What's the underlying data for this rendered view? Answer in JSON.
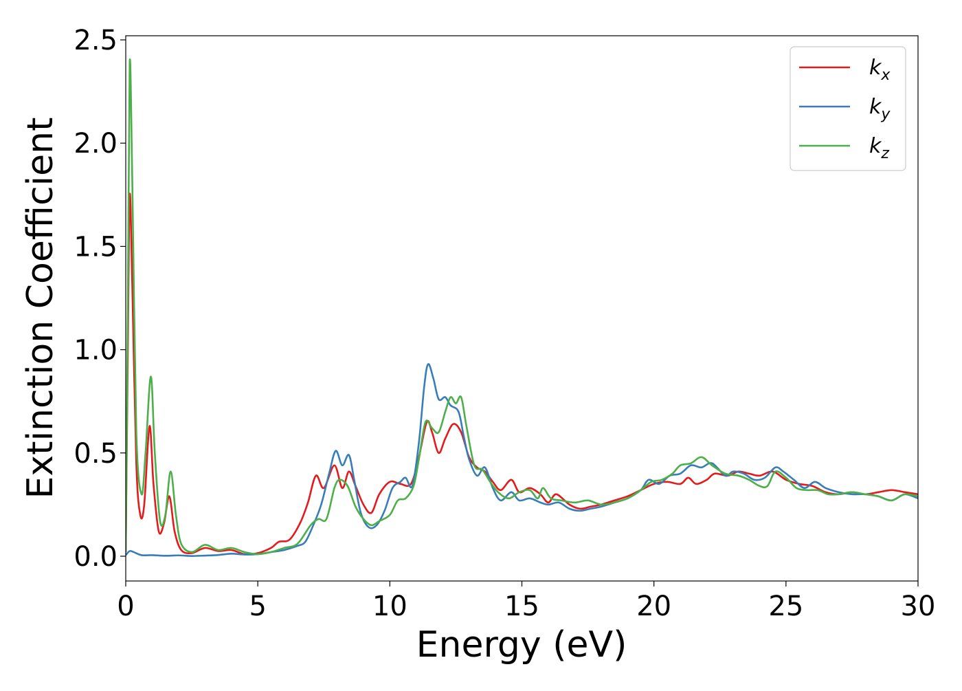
{
  "chart_data": {
    "type": "line",
    "title": "",
    "xlabel": "Energy (eV)",
    "ylabel": "Extinction Coefficient",
    "xlim": [
      0,
      30
    ],
    "ylim": [
      -0.12,
      2.52
    ],
    "xticks": [
      0,
      5,
      10,
      15,
      20,
      25,
      30
    ],
    "xtick_labels": [
      "0",
      "5",
      "10",
      "15",
      "20",
      "25",
      "30"
    ],
    "yticks": [
      0.0,
      0.5,
      1.0,
      1.5,
      2.0,
      2.5
    ],
    "ytick_labels": [
      "0.0",
      "0.5",
      "1.0",
      "1.5",
      "2.0",
      "2.5"
    ],
    "grid": false,
    "legend_position": "top-right",
    "series": [
      {
        "name": "k_x",
        "legend_base": "k",
        "legend_sub": "x",
        "color": "#e41a1c",
        "points": [
          [
            0,
            0.02
          ],
          [
            0.08,
            1.0
          ],
          [
            0.15,
            1.75
          ],
          [
            0.25,
            1.3
          ],
          [
            0.4,
            0.45
          ],
          [
            0.55,
            0.2
          ],
          [
            0.7,
            0.25
          ],
          [
            0.9,
            0.63
          ],
          [
            1.05,
            0.35
          ],
          [
            1.25,
            0.12
          ],
          [
            1.45,
            0.16
          ],
          [
            1.65,
            0.29
          ],
          [
            1.85,
            0.12
          ],
          [
            2.1,
            0.03
          ],
          [
            2.5,
            0.015
          ],
          [
            3.0,
            0.04
          ],
          [
            3.5,
            0.025
          ],
          [
            4.0,
            0.03
          ],
          [
            4.5,
            0.01
          ],
          [
            5.0,
            0.015
          ],
          [
            5.5,
            0.04
          ],
          [
            5.8,
            0.07
          ],
          [
            6.2,
            0.08
          ],
          [
            6.6,
            0.16
          ],
          [
            6.9,
            0.26
          ],
          [
            7.2,
            0.39
          ],
          [
            7.5,
            0.33
          ],
          [
            7.9,
            0.44
          ],
          [
            8.2,
            0.33
          ],
          [
            8.45,
            0.41
          ],
          [
            8.7,
            0.34
          ],
          [
            9.0,
            0.25
          ],
          [
            9.3,
            0.21
          ],
          [
            9.6,
            0.3
          ],
          [
            10.0,
            0.36
          ],
          [
            10.4,
            0.35
          ],
          [
            10.8,
            0.35
          ],
          [
            11.1,
            0.48
          ],
          [
            11.4,
            0.65
          ],
          [
            11.6,
            0.6
          ],
          [
            11.85,
            0.5
          ],
          [
            12.1,
            0.57
          ],
          [
            12.4,
            0.64
          ],
          [
            12.7,
            0.6
          ],
          [
            13.0,
            0.48
          ],
          [
            13.3,
            0.43
          ],
          [
            13.6,
            0.41
          ],
          [
            13.9,
            0.36
          ],
          [
            14.2,
            0.32
          ],
          [
            14.6,
            0.37
          ],
          [
            14.9,
            0.31
          ],
          [
            15.3,
            0.33
          ],
          [
            15.7,
            0.3
          ],
          [
            16.0,
            0.26
          ],
          [
            16.3,
            0.3
          ],
          [
            16.8,
            0.25
          ],
          [
            17.2,
            0.23
          ],
          [
            17.6,
            0.24
          ],
          [
            18.0,
            0.25
          ],
          [
            18.5,
            0.27
          ],
          [
            19.0,
            0.29
          ],
          [
            19.5,
            0.32
          ],
          [
            20.0,
            0.35
          ],
          [
            20.5,
            0.36
          ],
          [
            21.0,
            0.35
          ],
          [
            21.3,
            0.38
          ],
          [
            21.6,
            0.35
          ],
          [
            22.0,
            0.37
          ],
          [
            22.3,
            0.4
          ],
          [
            22.8,
            0.39
          ],
          [
            23.2,
            0.41
          ],
          [
            23.6,
            0.4
          ],
          [
            24.0,
            0.39
          ],
          [
            24.5,
            0.41
          ],
          [
            25.0,
            0.37
          ],
          [
            25.5,
            0.35
          ],
          [
            26.0,
            0.34
          ],
          [
            26.5,
            0.31
          ],
          [
            27.0,
            0.3
          ],
          [
            27.5,
            0.31
          ],
          [
            28.0,
            0.3
          ],
          [
            28.5,
            0.31
          ],
          [
            29.0,
            0.32
          ],
          [
            29.5,
            0.31
          ],
          [
            30.0,
            0.3
          ]
        ]
      },
      {
        "name": "k_y",
        "legend_base": "k",
        "legend_sub": "y",
        "color": "#377eb8",
        "points": [
          [
            0,
            0.005
          ],
          [
            0.15,
            0.025
          ],
          [
            0.3,
            0.02
          ],
          [
            0.6,
            0.005
          ],
          [
            1.0,
            0.005
          ],
          [
            1.5,
            0.002
          ],
          [
            2.0,
            0.004
          ],
          [
            2.5,
            0.001
          ],
          [
            3.0,
            0.003
          ],
          [
            3.5,
            0.006
          ],
          [
            4.0,
            0.012
          ],
          [
            4.5,
            0.008
          ],
          [
            5.0,
            0.01
          ],
          [
            5.5,
            0.02
          ],
          [
            6.0,
            0.03
          ],
          [
            6.5,
            0.05
          ],
          [
            6.8,
            0.07
          ],
          [
            7.1,
            0.15
          ],
          [
            7.4,
            0.25
          ],
          [
            7.7,
            0.4
          ],
          [
            7.95,
            0.51
          ],
          [
            8.2,
            0.44
          ],
          [
            8.45,
            0.49
          ],
          [
            8.65,
            0.37
          ],
          [
            8.9,
            0.21
          ],
          [
            9.2,
            0.14
          ],
          [
            9.5,
            0.15
          ],
          [
            9.8,
            0.22
          ],
          [
            10.1,
            0.33
          ],
          [
            10.4,
            0.36
          ],
          [
            10.6,
            0.38
          ],
          [
            10.85,
            0.34
          ],
          [
            11.1,
            0.55
          ],
          [
            11.3,
            0.82
          ],
          [
            11.45,
            0.93
          ],
          [
            11.65,
            0.86
          ],
          [
            11.85,
            0.76
          ],
          [
            12.1,
            0.77
          ],
          [
            12.3,
            0.73
          ],
          [
            12.6,
            0.7
          ],
          [
            12.8,
            0.58
          ],
          [
            13.0,
            0.47
          ],
          [
            13.3,
            0.39
          ],
          [
            13.6,
            0.43
          ],
          [
            13.9,
            0.33
          ],
          [
            14.2,
            0.27
          ],
          [
            14.6,
            0.31
          ],
          [
            14.9,
            0.27
          ],
          [
            15.3,
            0.28
          ],
          [
            15.7,
            0.26
          ],
          [
            16.0,
            0.25
          ],
          [
            16.4,
            0.26
          ],
          [
            16.8,
            0.23
          ],
          [
            17.2,
            0.22
          ],
          [
            17.6,
            0.23
          ],
          [
            18.0,
            0.24
          ],
          [
            18.5,
            0.26
          ],
          [
            19.0,
            0.28
          ],
          [
            19.5,
            0.32
          ],
          [
            19.8,
            0.37
          ],
          [
            20.2,
            0.35
          ],
          [
            20.6,
            0.39
          ],
          [
            21.0,
            0.4
          ],
          [
            21.4,
            0.44
          ],
          [
            21.8,
            0.43
          ],
          [
            22.2,
            0.45
          ],
          [
            22.7,
            0.39
          ],
          [
            23.0,
            0.41
          ],
          [
            23.4,
            0.4
          ],
          [
            23.8,
            0.37
          ],
          [
            24.2,
            0.38
          ],
          [
            24.6,
            0.43
          ],
          [
            24.9,
            0.41
          ],
          [
            25.3,
            0.37
          ],
          [
            25.7,
            0.33
          ],
          [
            26.1,
            0.36
          ],
          [
            26.5,
            0.33
          ],
          [
            27.0,
            0.31
          ],
          [
            27.5,
            0.3
          ],
          [
            28.0,
            0.3
          ],
          [
            28.5,
            0.29
          ],
          [
            29.0,
            0.27
          ],
          [
            29.5,
            0.3
          ],
          [
            30.0,
            0.28
          ]
        ]
      },
      {
        "name": "k_z",
        "legend_base": "k",
        "legend_sub": "z",
        "color": "#4daf4a",
        "points": [
          [
            0,
            0.02
          ],
          [
            0.08,
            1.2
          ],
          [
            0.15,
            2.39
          ],
          [
            0.25,
            1.8
          ],
          [
            0.4,
            0.6
          ],
          [
            0.6,
            0.3
          ],
          [
            0.75,
            0.5
          ],
          [
            0.95,
            0.87
          ],
          [
            1.1,
            0.5
          ],
          [
            1.3,
            0.17
          ],
          [
            1.5,
            0.2
          ],
          [
            1.7,
            0.41
          ],
          [
            1.9,
            0.2
          ],
          [
            2.1,
            0.06
          ],
          [
            2.5,
            0.02
          ],
          [
            3.0,
            0.055
          ],
          [
            3.5,
            0.03
          ],
          [
            4.0,
            0.04
          ],
          [
            4.5,
            0.02
          ],
          [
            5.0,
            0.01
          ],
          [
            5.5,
            0.02
          ],
          [
            6.0,
            0.04
          ],
          [
            6.5,
            0.06
          ],
          [
            7.0,
            0.15
          ],
          [
            7.3,
            0.18
          ],
          [
            7.6,
            0.18
          ],
          [
            7.9,
            0.33
          ],
          [
            8.1,
            0.37
          ],
          [
            8.4,
            0.34
          ],
          [
            8.7,
            0.24
          ],
          [
            9.0,
            0.18
          ],
          [
            9.3,
            0.15
          ],
          [
            9.6,
            0.17
          ],
          [
            10.0,
            0.2
          ],
          [
            10.3,
            0.27
          ],
          [
            10.6,
            0.28
          ],
          [
            10.9,
            0.34
          ],
          [
            11.1,
            0.47
          ],
          [
            11.35,
            0.65
          ],
          [
            11.6,
            0.62
          ],
          [
            11.85,
            0.6
          ],
          [
            12.1,
            0.7
          ],
          [
            12.3,
            0.77
          ],
          [
            12.5,
            0.74
          ],
          [
            12.7,
            0.77
          ],
          [
            12.9,
            0.63
          ],
          [
            13.2,
            0.44
          ],
          [
            13.5,
            0.42
          ],
          [
            13.8,
            0.36
          ],
          [
            14.1,
            0.31
          ],
          [
            14.5,
            0.28
          ],
          [
            14.9,
            0.31
          ],
          [
            15.3,
            0.32
          ],
          [
            15.6,
            0.28
          ],
          [
            15.8,
            0.33
          ],
          [
            16.1,
            0.28
          ],
          [
            16.5,
            0.27
          ],
          [
            17.0,
            0.26
          ],
          [
            17.5,
            0.27
          ],
          [
            18.0,
            0.25
          ],
          [
            18.5,
            0.26
          ],
          [
            19.0,
            0.28
          ],
          [
            19.5,
            0.32
          ],
          [
            19.9,
            0.36
          ],
          [
            20.3,
            0.37
          ],
          [
            20.7,
            0.4
          ],
          [
            21.0,
            0.44
          ],
          [
            21.4,
            0.45
          ],
          [
            21.8,
            0.48
          ],
          [
            22.2,
            0.44
          ],
          [
            22.7,
            0.4
          ],
          [
            23.2,
            0.39
          ],
          [
            23.6,
            0.37
          ],
          [
            24.0,
            0.34
          ],
          [
            24.3,
            0.34
          ],
          [
            24.6,
            0.41
          ],
          [
            25.0,
            0.38
          ],
          [
            25.4,
            0.33
          ],
          [
            25.8,
            0.32
          ],
          [
            26.2,
            0.32
          ],
          [
            26.6,
            0.3
          ],
          [
            27.0,
            0.3
          ],
          [
            27.5,
            0.31
          ],
          [
            28.0,
            0.3
          ],
          [
            28.5,
            0.29
          ],
          [
            29.0,
            0.27
          ],
          [
            29.5,
            0.3
          ],
          [
            30.0,
            0.29
          ]
        ]
      }
    ]
  }
}
